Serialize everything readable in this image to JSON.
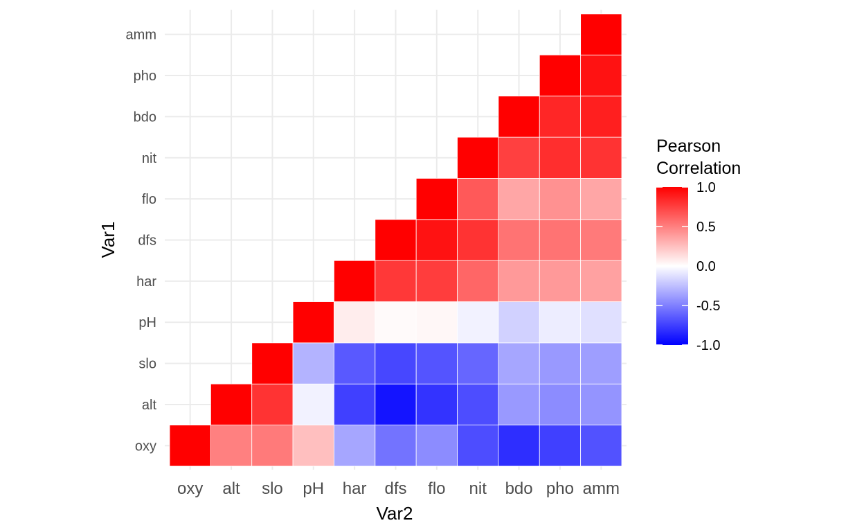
{
  "chart_data": {
    "type": "heatmap",
    "xlabel": "Var2",
    "ylabel": "Var1",
    "x_categories": [
      "oxy",
      "alt",
      "slo",
      "pH",
      "har",
      "dfs",
      "flo",
      "nit",
      "bdo",
      "pho",
      "amm"
    ],
    "y_categories": [
      "oxy",
      "alt",
      "slo",
      "pH",
      "har",
      "dfs",
      "flo",
      "nit",
      "bdo",
      "pho",
      "amm"
    ],
    "values": [
      [
        1.0,
        0.5,
        0.52,
        0.25,
        -0.35,
        -0.55,
        -0.45,
        -0.7,
        -0.82,
        -0.75,
        -0.68
      ],
      [
        null,
        1.0,
        0.8,
        -0.05,
        -0.75,
        -0.92,
        -0.8,
        -0.7,
        -0.4,
        -0.45,
        -0.42
      ],
      [
        null,
        null,
        1.0,
        -0.3,
        -0.65,
        -0.72,
        -0.67,
        -0.6,
        -0.35,
        -0.4,
        -0.38
      ],
      [
        null,
        null,
        null,
        1.0,
        0.07,
        0.02,
        0.03,
        -0.05,
        -0.18,
        -0.07,
        -0.12
      ],
      [
        null,
        null,
        null,
        null,
        1.0,
        0.78,
        0.76,
        0.6,
        0.4,
        0.4,
        0.37
      ],
      [
        null,
        null,
        null,
        null,
        null,
        1.0,
        0.93,
        0.8,
        0.55,
        0.55,
        0.52
      ],
      [
        null,
        null,
        null,
        null,
        null,
        null,
        1.0,
        0.65,
        0.35,
        0.43,
        0.35
      ],
      [
        null,
        null,
        null,
        null,
        null,
        null,
        null,
        1.0,
        0.75,
        0.82,
        0.8
      ],
      [
        null,
        null,
        null,
        null,
        null,
        null,
        null,
        null,
        1.0,
        0.85,
        0.88
      ],
      [
        null,
        null,
        null,
        null,
        null,
        null,
        null,
        null,
        null,
        1.0,
        0.93
      ],
      [
        null,
        null,
        null,
        null,
        null,
        null,
        null,
        null,
        null,
        null,
        1.0
      ]
    ],
    "colorscale": {
      "low": "#0000ff",
      "mid": "#ffffff",
      "high": "#ff0000",
      "limits": [
        -1,
        1
      ]
    },
    "legend": {
      "title_lines": [
        "Pearson",
        "Correlation"
      ],
      "ticks": [
        "1.0",
        "0.5",
        "0.0",
        "-0.5",
        "-1.0"
      ],
      "tick_values": [
        1.0,
        0.5,
        0.0,
        -0.5,
        -1.0
      ],
      "placement": "right"
    },
    "grid": true
  }
}
